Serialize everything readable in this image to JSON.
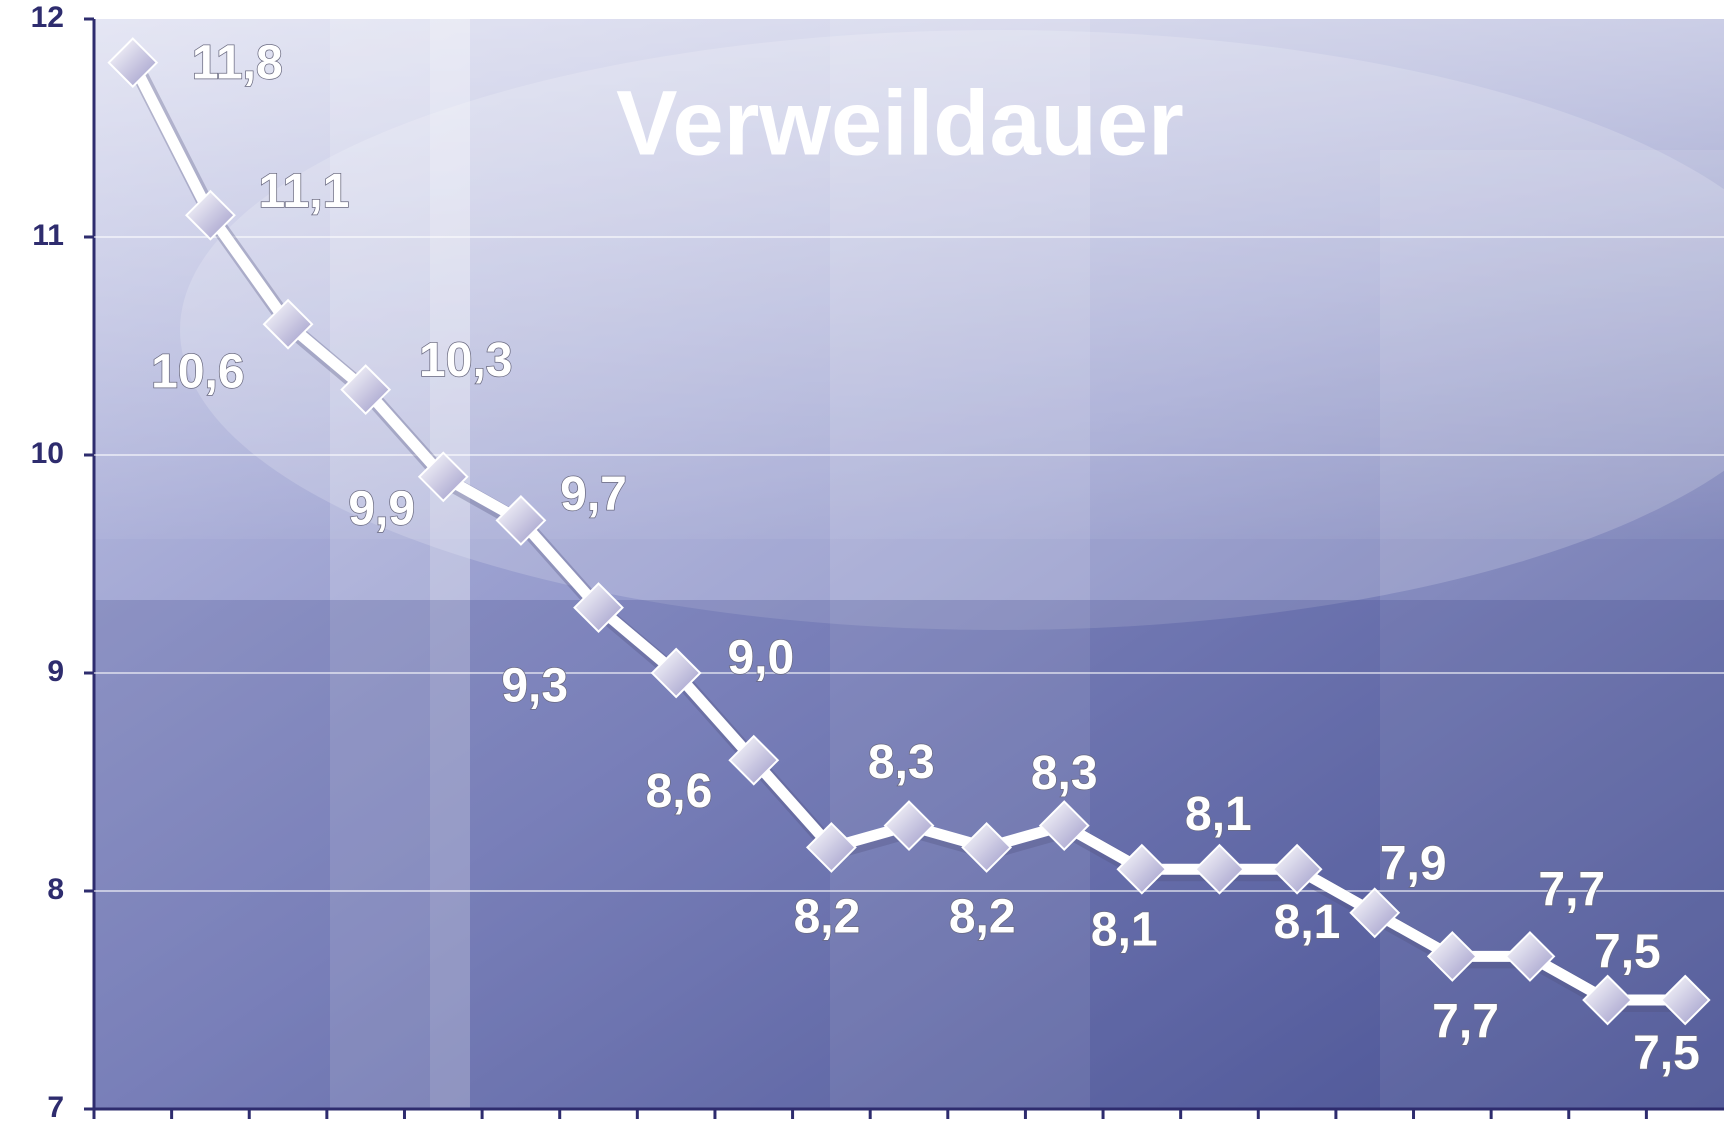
{
  "chart_data": {
    "type": "line",
    "title": "Verweildauer",
    "categories": [
      null,
      null,
      null,
      null,
      null,
      null,
      null,
      null,
      null,
      null,
      null,
      null,
      null,
      null,
      null,
      null,
      null,
      null,
      null,
      null,
      null
    ],
    "values": [
      11.8,
      11.1,
      10.6,
      10.3,
      9.9,
      9.7,
      9.3,
      9.0,
      8.6,
      8.2,
      8.3,
      8.2,
      8.3,
      8.1,
      8.1,
      8.1,
      7.9,
      7.7,
      7.7,
      7.5,
      7.5
    ],
    "value_labels": [
      "11,8",
      "11,1",
      "10,6",
      "10,3",
      "9,9",
      "9,7",
      "9,3",
      "9,0",
      "8,6",
      "8,2",
      "8,3",
      "8,2",
      "8,3",
      "8,1",
      "8,1",
      "8,1",
      "7,9",
      "7,7",
      "7,7",
      "7,5",
      "7,5"
    ],
    "color": "#ffffff",
    "ylim": [
      7,
      12
    ],
    "yticks": [
      7,
      8,
      9,
      10,
      11,
      12
    ],
    "grid": true
  }
}
